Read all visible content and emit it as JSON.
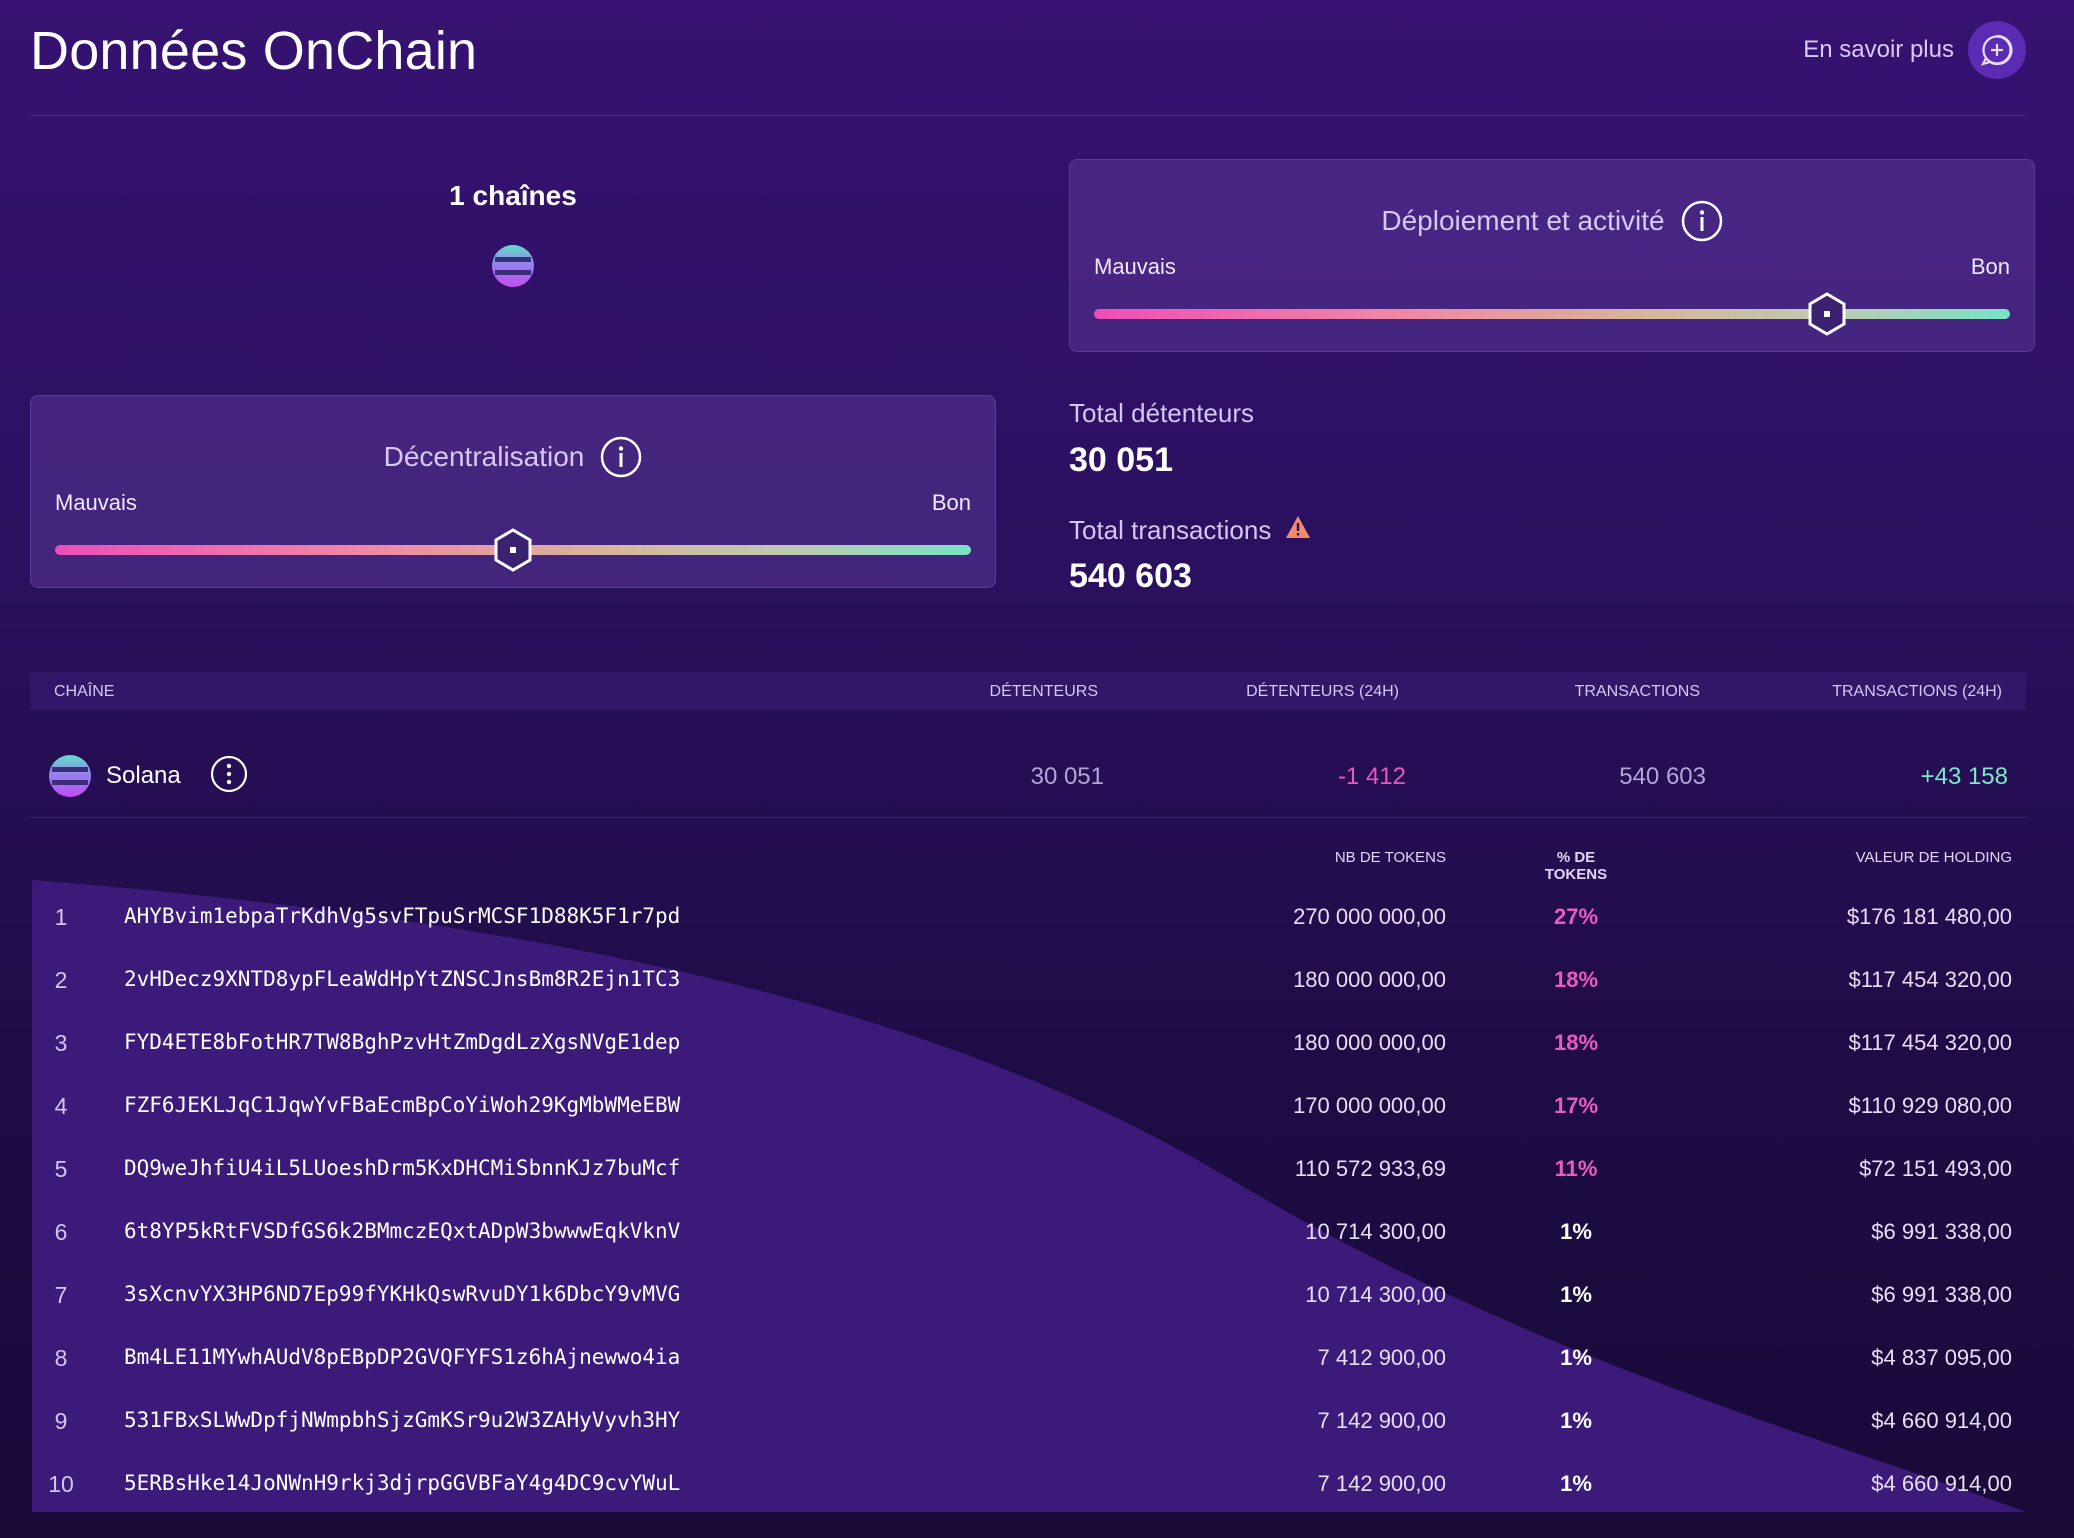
{
  "header": {
    "title": "Données OnChain",
    "learn_more": "En savoir plus",
    "learn_more_icon": "chat-plus-icon"
  },
  "chains": {
    "count_label": "1 chaînes",
    "logo_icon": "solana-logo-icon"
  },
  "meters": {
    "deployment": {
      "title": "Déploiement et activité",
      "low": "Mauvais",
      "high": "Bon",
      "level": 0.8
    },
    "decentralization": {
      "title": "Décentralisation",
      "low": "Mauvais",
      "high": "Bon",
      "level": 0.5
    }
  },
  "stats": {
    "holders_label": "Total détenteurs",
    "holders_value": "30 051",
    "transactions_label": "Total transactions",
    "transactions_value": "540 603",
    "warning_color": "#f28b6c"
  },
  "chain_table": {
    "headers": {
      "chain": "CHAÎNE",
      "holders": "DÉTENTEURS",
      "holders_24h": "DÉTENTEURS (24H)",
      "transactions": "TRANSACTIONS",
      "transactions_24h": "TRANSACTIONS (24H)"
    },
    "rows": [
      {
        "name": "Solana",
        "holders": "30 051",
        "holders_24h": "-1 412",
        "transactions": "540 603",
        "transactions_24h": "+43 158"
      }
    ],
    "colors": {
      "negative": "#e55ab8",
      "positive": "#7ee6cb",
      "neutral": "#b4a6d4"
    }
  },
  "holders_table": {
    "headers": {
      "tokens": "NB DE TOKENS",
      "pct": "% DE TOKENS",
      "value": "VALEUR DE HOLDING"
    },
    "rows": [
      {
        "rank": "1",
        "address": "AHYBvim1ebpaTrKdhVg5svFTpuSrMCSF1D88K5F1r7pd",
        "tokens": "270 000 000,00",
        "pct": "27%",
        "value": "$176 181 480,00",
        "highlight": true
      },
      {
        "rank": "2",
        "address": "2vHDecz9XNTD8ypFLeaWdHpYtZNSCJnsBm8R2Ejn1TC3",
        "tokens": "180 000 000,00",
        "pct": "18%",
        "value": "$117 454 320,00",
        "highlight": true
      },
      {
        "rank": "3",
        "address": "FYD4ETE8bFotHR7TW8BghPzvHtZmDgdLzXgsNVgE1dep",
        "tokens": "180 000 000,00",
        "pct": "18%",
        "value": "$117 454 320,00",
        "highlight": true
      },
      {
        "rank": "4",
        "address": "FZF6JEKLJqC1JqwYvFBaEcmBpCoYiWoh29KgMbWMeEBW",
        "tokens": "170 000 000,00",
        "pct": "17%",
        "value": "$110 929 080,00",
        "highlight": true
      },
      {
        "rank": "5",
        "address": "DQ9weJhfiU4iL5LUoeshDrm5KxDHCMiSbnnKJz7buMcf",
        "tokens": "110 572 933,69",
        "pct": "11%",
        "value": "$72 151 493,00",
        "highlight": true
      },
      {
        "rank": "6",
        "address": "6t8YP5kRtFVSDfGS6k2BMmczEQxtADpW3bwwwEqkVknV",
        "tokens": "10 714 300,00",
        "pct": "1%",
        "value": "$6 991 338,00",
        "highlight": false
      },
      {
        "rank": "7",
        "address": "3sXcnvYX3HP6ND7Ep99fYKHkQswRvuDY1k6DbcY9vMVG",
        "tokens": "10 714 300,00",
        "pct": "1%",
        "value": "$6 991 338,00",
        "highlight": false
      },
      {
        "rank": "8",
        "address": "Bm4LE11MYwhAUdV8pEBpDP2GVQFYFS1z6hAjnewwo4ia",
        "tokens": "7 412 900,00",
        "pct": "1%",
        "value": "$4 837 095,00",
        "highlight": false
      },
      {
        "rank": "9",
        "address": "531FBxSLWwDpfjNWmpbhSjzGmKSr9u2W3ZAHyVyvh3HY",
        "tokens": "7 142 900,00",
        "pct": "1%",
        "value": "$4 660 914,00",
        "highlight": false
      },
      {
        "rank": "10",
        "address": "5ERBsHke14JoNWnH9rkj3djrpGGVBFaY4g4DC9cvYWuL",
        "tokens": "7 142 900,00",
        "pct": "1%",
        "value": "$4 660 914,00",
        "highlight": false
      }
    ],
    "colors": {
      "highlight": "#ea5bbf",
      "normal": "#ffffff"
    }
  }
}
